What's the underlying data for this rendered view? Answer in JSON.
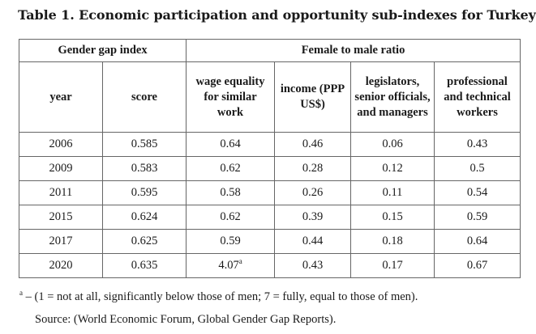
{
  "title": "Table 1. Economic participation and opportunity sub-indexes for Turkey",
  "header": {
    "group_left": "Gender gap index",
    "group_right": "Female to male ratio",
    "columns": [
      "year",
      "score",
      "wage equality for similar work",
      "income (PPP US$)",
      "legislators, senior officials, and managers",
      "professional and technical workers"
    ]
  },
  "rows": [
    [
      "2006",
      "0.585",
      "0.64",
      "0.46",
      "0.06",
      "0.43"
    ],
    [
      "2009",
      "0.583",
      "0.62",
      "0.28",
      "0.12",
      "0.5"
    ],
    [
      "2011",
      "0.595",
      "0.58",
      "0.26",
      "0.11",
      "0.54"
    ],
    [
      "2015",
      "0.624",
      "0.62",
      "0.39",
      "0.15",
      "0.59"
    ],
    [
      "2017",
      "0.625",
      "0.59",
      "0.44",
      "0.18",
      "0.64"
    ],
    [
      "2020",
      "0.635",
      "4.07",
      "0.43",
      "0.17",
      "0.67"
    ]
  ],
  "superscript": "a",
  "footnote_text": "– (1 = not at all, significantly below those of men; 7 = fully, equal to those of men).",
  "source": "Source: (World Economic Forum, Global Gender Gap Reports)."
}
